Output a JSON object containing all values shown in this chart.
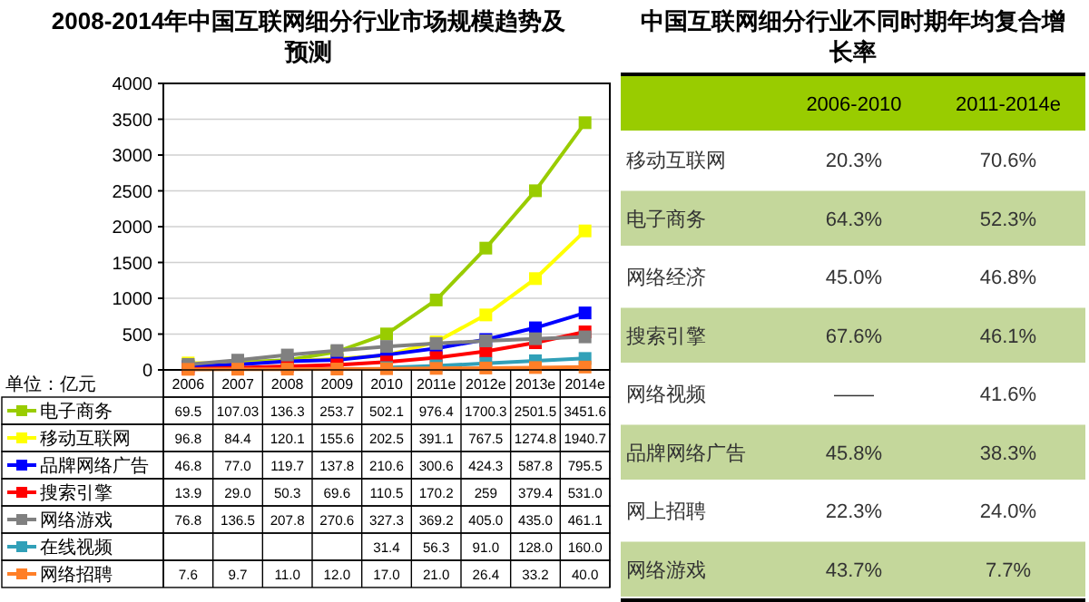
{
  "chart_data": [
    {
      "type": "line",
      "title": "2008-2014年中国互联网细分行业市场规模趋势及预测",
      "categories": [
        "2006",
        "2007",
        "2008",
        "2009",
        "2010",
        "2011e",
        "2012e",
        "2013e",
        "2014e"
      ],
      "series": [
        {
          "name": "电子商务",
          "color": "#99cc00",
          "values": [
            69.5,
            107.03,
            136.3,
            253.7,
            502.1,
            976.4,
            1700.3,
            2501.5,
            3451.6
          ],
          "value_labels": [
            "69.5",
            "107.03",
            "136.3",
            "253.7",
            "502.1",
            "976.4",
            "1700.3",
            "2501.5",
            "3451.6"
          ]
        },
        {
          "name": "移动互联网",
          "color": "#ffff00",
          "values": [
            96.8,
            84.4,
            120.1,
            155.6,
            202.5,
            391.1,
            767.5,
            1274.8,
            1940.7
          ],
          "value_labels": [
            "96.8",
            "84.4",
            "120.1",
            "155.6",
            "202.5",
            "391.1",
            "767.5",
            "1274.8",
            "1940.7"
          ]
        },
        {
          "name": "品牌网络广告",
          "color": "#0000ff",
          "values": [
            46.8,
            77.0,
            119.7,
            137.8,
            210.6,
            300.6,
            424.3,
            587.8,
            795.5
          ],
          "value_labels": [
            "46.8",
            "77.0",
            "119.7",
            "137.8",
            "210.6",
            "300.6",
            "424.3",
            "587.8",
            "795.5"
          ]
        },
        {
          "name": "搜索引擎",
          "color": "#ff0000",
          "values": [
            13.9,
            29.0,
            50.3,
            69.6,
            110.5,
            170.2,
            259,
            379.4,
            531.0
          ],
          "value_labels": [
            "13.9",
            "29.0",
            "50.3",
            "69.6",
            "110.5",
            "170.2",
            "259",
            "379.4",
            "531.0"
          ]
        },
        {
          "name": "网络游戏",
          "color": "#808080",
          "values": [
            76.8,
            136.5,
            207.8,
            270.6,
            327.3,
            369.2,
            405.0,
            435.0,
            461.1
          ],
          "value_labels": [
            "76.8",
            "136.5",
            "207.8",
            "270.6",
            "327.3",
            "369.2",
            "405.0",
            "435.0",
            "461.1"
          ]
        },
        {
          "name": "在线视频",
          "color": "#31a0b8",
          "values": [
            null,
            null,
            null,
            null,
            31.4,
            56.3,
            91.0,
            128.0,
            160.0
          ],
          "value_labels": [
            null,
            null,
            null,
            null,
            "31.4",
            "56.3",
            "91.0",
            "128.0",
            "160.0"
          ]
        },
        {
          "name": "网络招聘",
          "color": "#ff7f27",
          "values": [
            7.6,
            9.7,
            11.0,
            12.0,
            17.0,
            21.0,
            26.4,
            33.2,
            40.0
          ],
          "value_labels": [
            "7.6",
            "9.7",
            "11.0",
            "12.0",
            "17.0",
            "21.0",
            "26.4",
            "33.2",
            "40.0"
          ]
        }
      ],
      "ylim": [
        0,
        4000
      ],
      "yticks": [
        0,
        500,
        1000,
        1500,
        2000,
        2500,
        3000,
        3500,
        4000
      ],
      "grid": "y",
      "legend": "bottom",
      "marker": "square",
      "annotations": [
        "单位：亿元"
      ]
    },
    {
      "type": "other",
      "title": "中国互联网细分行业不同时期年均复合增长率",
      "categories": [
        "移动互联网",
        "电子商务",
        "网络经济",
        "搜索引擎",
        "网络视频",
        "品牌网络广告",
        "网上招聘",
        "网络游戏"
      ],
      "series": [
        {
          "name": "2006-2010",
          "values": [
            20.3,
            64.3,
            45.0,
            67.6,
            null,
            45.8,
            22.3,
            43.7
          ],
          "value_labels": [
            "20.3%",
            "64.3%",
            "45.0%",
            "67.6%",
            "——",
            "45.8%",
            "22.3%",
            "43.7%"
          ]
        },
        {
          "name": "2011-2014e",
          "values": [
            70.6,
            52.3,
            46.8,
            46.1,
            41.6,
            38.3,
            24.0,
            7.7
          ],
          "value_labels": [
            "70.6%",
            "52.3%",
            "46.8%",
            "46.1%",
            "41.6%",
            "38.3%",
            "24.0%",
            "7.7%"
          ]
        }
      ]
    }
  ]
}
